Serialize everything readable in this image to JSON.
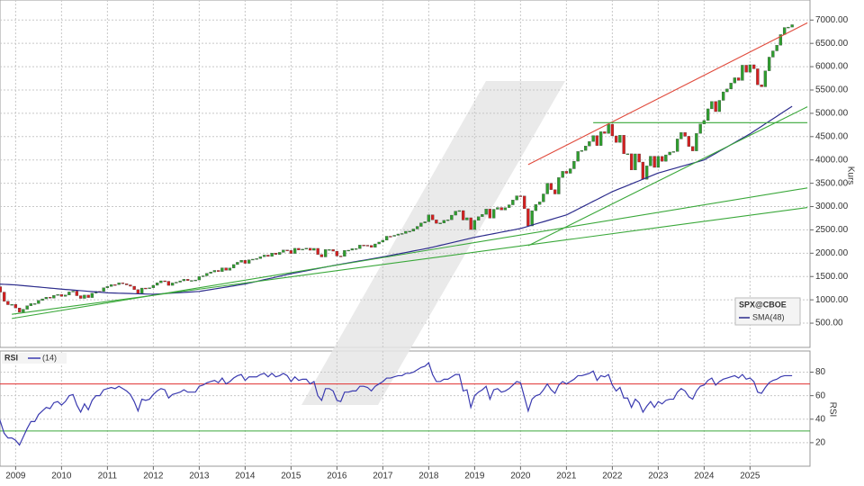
{
  "chart_data": [
    {
      "type": "candlestick",
      "series": [
        {
          "name": "SPX@CBOE",
          "up_color": "#2e9e2e",
          "down_color": "#d42020",
          "values": [
            1282,
            1166,
            969,
            896,
            903,
            826,
            735,
            798,
            873,
            919,
            919,
            987,
            1021,
            1057,
            1036,
            1096,
            1115,
            1074,
            1104,
            1169,
            1187,
            1089,
            1031,
            1102,
            1049,
            1141,
            1183,
            1181,
            1258,
            1286,
            1327,
            1326,
            1364,
            1345,
            1321,
            1292,
            1219,
            1131,
            1253,
            1247,
            1258,
            1312,
            1366,
            1408,
            1398,
            1310,
            1362,
            1379,
            1407,
            1441,
            1412,
            1416,
            1426,
            1498,
            1515,
            1569,
            1598,
            1631,
            1606,
            1686,
            1633,
            1682,
            1757,
            1806,
            1848,
            1783,
            1859,
            1872,
            1884,
            1924,
            1960,
            1931,
            2003,
            1972,
            2018,
            2068,
            2059,
            1995,
            2105,
            2068,
            2086,
            2107,
            2063,
            2104,
            1972,
            1920,
            2079,
            2080,
            2044,
            1940,
            1932,
            2060,
            2065,
            2097,
            2099,
            2174,
            2171,
            2168,
            2126,
            2199,
            2239,
            2279,
            2364,
            2363,
            2384,
            2412,
            2423,
            2470,
            2472,
            2519,
            2575,
            2648,
            2674,
            2824,
            2714,
            2641,
            2648,
            2705,
            2718,
            2816,
            2902,
            2914,
            2712,
            2760,
            2507,
            2704,
            2784,
            2834,
            2946,
            2752,
            2942,
            2980,
            2926,
            2977,
            3038,
            3141,
            3231,
            3226,
            2954,
            2585,
            2912,
            3044,
            3100,
            3271,
            3500,
            3363,
            3270,
            3622,
            3756,
            3714,
            3811,
            3973,
            4181,
            4204,
            4298,
            4395,
            4523,
            4308,
            4605,
            4567,
            4766,
            4516,
            4374,
            4530,
            4132,
            4132,
            3785,
            4130,
            3955,
            3586,
            3872,
            4080,
            3840,
            4077,
            3970,
            4109,
            4169,
            4180,
            4450,
            4589,
            4508,
            4288,
            4194,
            4568,
            4770,
            4846,
            5096,
            5254,
            5036,
            5278,
            5460,
            5522,
            5648,
            5762,
            5705,
            6032,
            5882,
            6041,
            5955,
            5612,
            5569,
            5912,
            6205,
            6339,
            6460,
            6688,
            6840,
            6849,
            6900
          ]
        },
        {
          "name": "SMA(48)",
          "color": "#2c2c8c",
          "values": [
            1340,
            1336,
            1332,
            1328,
            1324,
            1320,
            1312,
            1305,
            1297,
            1290,
            1282,
            1275,
            1267,
            1260,
            1252,
            1245,
            1237,
            1230,
            1223,
            1217,
            1210,
            1203,
            1197,
            1190,
            1183,
            1177,
            1170,
            1163,
            1157,
            1150,
            1148,
            1145,
            1142,
            1140,
            1138,
            1135,
            1132,
            1130,
            1128,
            1125,
            1122,
            1120,
            1125,
            1130,
            1135,
            1140,
            1145,
            1150,
            1155,
            1160,
            1165,
            1170,
            1175,
            1180,
            1193,
            1207,
            1220,
            1233,
            1247,
            1260,
            1273,
            1287,
            1300,
            1313,
            1327,
            1340,
            1358,
            1377,
            1395,
            1413,
            1432,
            1450,
            1468,
            1487,
            1505,
            1523,
            1542,
            1560,
            1576,
            1592,
            1608,
            1623,
            1639,
            1655,
            1671,
            1687,
            1703,
            1718,
            1734,
            1750,
            1764,
            1778,
            1793,
            1807,
            1821,
            1835,
            1849,
            1863,
            1878,
            1892,
            1906,
            1920,
            1936,
            1952,
            1968,
            1983,
            1999,
            2015,
            2031,
            2047,
            2063,
            2078,
            2094,
            2110,
            2129,
            2148,
            2168,
            2187,
            2206,
            2225,
            2244,
            2263,
            2283,
            2302,
            2321,
            2340,
            2356,
            2372,
            2388,
            2403,
            2419,
            2435,
            2451,
            2467,
            2483,
            2498,
            2514,
            2530,
            2554,
            2578,
            2603,
            2627,
            2651,
            2675,
            2699,
            2723,
            2748,
            2772,
            2796,
            2820,
            2862,
            2903,
            2945,
            2987,
            3028,
            3070,
            3112,
            3153,
            3195,
            3237,
            3278,
            3320,
            3353,
            3387,
            3420,
            3453,
            3487,
            3520,
            3553,
            3587,
            3620,
            3653,
            3687,
            3720,
            3743,
            3767,
            3790,
            3813,
            3837,
            3860,
            3883,
            3907,
            3930,
            3953,
            3977,
            4000,
            4047,
            4093,
            4140,
            4187,
            4233,
            4280,
            4327,
            4373,
            4420,
            4467,
            4513,
            4560,
            4614,
            4667,
            4721,
            4775,
            4829,
            4882,
            4936,
            4990,
            5043,
            5097,
            5150
          ]
        }
      ],
      "trendlines": [
        {
          "from": [
            139,
            3900
          ],
          "to": [
            212,
            6940
          ],
          "color": "#e04a3c"
        },
        {
          "from": [
            156,
            4800
          ],
          "to": [
            212,
            4800
          ],
          "color": "#3aa83a"
        },
        {
          "from": [
            139,
            2160
          ],
          "to": [
            212,
            5140
          ],
          "color": "#3aa83a"
        },
        {
          "from": [
            4,
            600
          ],
          "to": [
            212,
            3400
          ],
          "color": "#3aa83a"
        },
        {
          "from": [
            4,
            690
          ],
          "to": [
            212,
            2980
          ],
          "color": "#3aa83a"
        }
      ],
      "ylim": [
        -20,
        7430
      ],
      "yticks": [
        {
          "value": 500,
          "label": "500.00"
        },
        {
          "value": 1000,
          "label": "1000.00"
        },
        {
          "value": 1500,
          "label": "1500.00"
        },
        {
          "value": 2000,
          "label": "2000.00"
        },
        {
          "value": 2500,
          "label": "2500.00"
        },
        {
          "value": 3000,
          "label": "3000.00"
        },
        {
          "value": 3500,
          "label": "3500.00"
        },
        {
          "value": 4000,
          "label": "4000.00"
        },
        {
          "value": 4500,
          "label": "4500.00"
        },
        {
          "value": 5000,
          "label": "5000.00"
        },
        {
          "value": 5500,
          "label": "5500.00"
        },
        {
          "value": 6000,
          "label": "6000.00"
        },
        {
          "value": 6500,
          "label": "6500.00"
        },
        {
          "value": 7000,
          "label": "7000.00"
        }
      ],
      "y_label": "Kurs",
      "grid": true
    },
    {
      "type": "line",
      "title": "RSI",
      "y_label": "RSI",
      "series": [
        {
          "name": "(14)",
          "color": "#3b3bb0",
          "values": [
            48,
            38,
            28,
            24,
            24,
            22,
            18,
            25,
            32,
            38,
            38,
            44,
            47,
            50,
            49,
            54,
            55,
            52,
            55,
            60,
            61,
            52,
            46,
            53,
            48,
            56,
            60,
            60,
            65,
            66,
            67,
            66,
            68,
            66,
            64,
            61,
            55,
            47,
            57,
            56,
            57,
            61,
            64,
            66,
            65,
            58,
            61,
            62,
            63,
            65,
            63,
            63,
            63,
            68,
            69,
            71,
            72,
            73,
            71,
            75,
            70,
            72,
            75,
            77,
            78,
            73,
            76,
            76,
            76,
            78,
            79,
            76,
            79,
            76,
            77,
            79,
            77,
            72,
            76,
            73,
            74,
            74,
            70,
            72,
            60,
            56,
            66,
            66,
            64,
            56,
            55,
            63,
            63,
            64,
            64,
            68,
            68,
            67,
            64,
            68,
            70,
            72,
            75,
            75,
            76,
            77,
            77,
            79,
            79,
            80,
            82,
            84,
            85,
            88,
            78,
            72,
            72,
            74,
            74,
            76,
            78,
            78,
            64,
            65,
            50,
            60,
            63,
            65,
            68,
            57,
            65,
            66,
            63,
            64,
            66,
            69,
            72,
            71,
            59,
            47,
            57,
            60,
            61,
            65,
            70,
            65,
            62,
            69,
            72,
            70,
            72,
            74,
            77,
            77,
            78,
            79,
            81,
            73,
            77,
            76,
            78,
            69,
            64,
            67,
            58,
            58,
            50,
            57,
            54,
            46,
            51,
            55,
            50,
            55,
            53,
            56,
            57,
            57,
            63,
            66,
            64,
            59,
            57,
            64,
            68,
            69,
            73,
            75,
            69,
            72,
            74,
            75,
            76,
            77,
            75,
            78,
            74,
            75,
            72,
            63,
            62,
            67,
            71,
            73,
            74,
            76,
            77,
            77,
            77
          ]
        }
      ],
      "levels": [
        {
          "value": 70,
          "color": "#e03030"
        },
        {
          "value": 30,
          "color": "#3aa83a"
        }
      ],
      "ylim": [
        0,
        98
      ],
      "yticks": [
        20,
        40,
        60,
        80
      ],
      "grid": true,
      "categories": [
        null,
        null,
        null,
        null,
        null,
        "2009",
        null,
        null,
        null,
        null,
        null,
        null,
        null,
        null,
        null,
        null,
        null,
        "2010",
        null,
        null,
        null,
        null,
        null,
        null,
        null,
        null,
        null,
        null,
        null,
        "2011",
        null,
        null,
        null,
        null,
        null,
        null,
        null,
        null,
        null,
        null,
        null,
        "2012",
        null,
        null,
        null,
        null,
        null,
        null,
        null,
        null,
        null,
        null,
        null,
        "2013",
        null,
        null,
        null,
        null,
        null,
        null,
        null,
        null,
        null,
        null,
        null,
        "2014",
        null,
        null,
        null,
        null,
        null,
        null,
        null,
        null,
        null,
        null,
        null,
        "2015",
        null,
        null,
        null,
        null,
        null,
        null,
        null,
        null,
        null,
        null,
        null,
        "2016",
        null,
        null,
        null,
        null,
        null,
        null,
        null,
        null,
        null,
        null,
        null,
        "2017",
        null,
        null,
        null,
        null,
        null,
        null,
        null,
        null,
        null,
        null,
        null,
        "2018",
        null,
        null,
        null,
        null,
        null,
        null,
        null,
        null,
        null,
        null,
        null,
        "2019",
        null,
        null,
        null,
        null,
        null,
        null,
        null,
        null,
        null,
        null,
        null,
        "2020",
        null,
        null,
        null,
        null,
        null,
        null,
        null,
        null,
        null,
        null,
        null,
        "2021",
        null,
        null,
        null,
        null,
        null,
        null,
        null,
        null,
        null,
        null,
        null,
        "2022",
        null,
        null,
        null,
        null,
        null,
        null,
        null,
        null,
        null,
        null,
        null,
        "2023",
        null,
        null,
        null,
        null,
        null,
        null,
        null,
        null,
        null,
        null,
        null,
        "2024",
        null,
        null,
        null,
        null,
        null,
        null,
        null,
        null,
        null,
        null,
        null,
        "2025",
        null,
        null,
        null,
        null,
        null,
        null,
        null,
        null,
        null,
        null,
        null
      ]
    }
  ]
}
